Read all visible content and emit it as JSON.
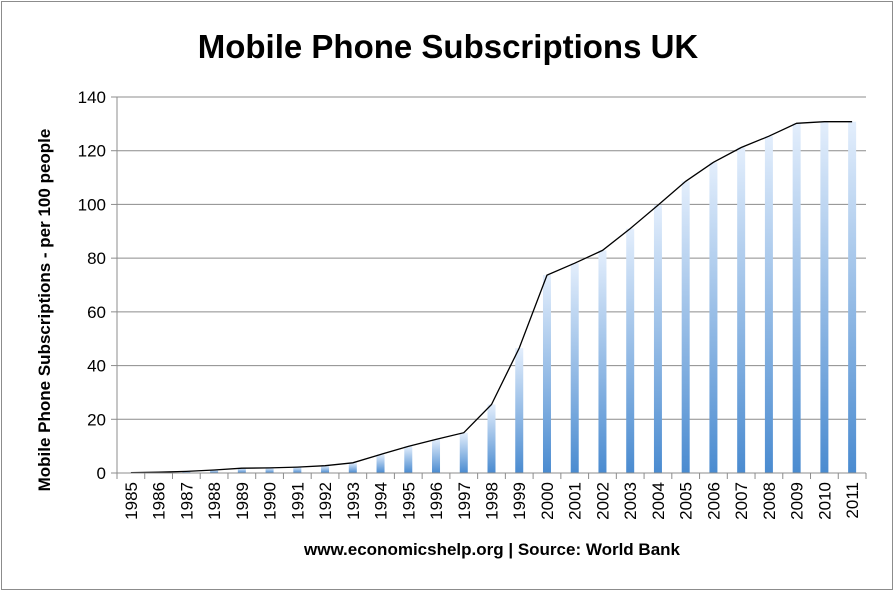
{
  "chart_data": {
    "type": "bar",
    "title": "Mobile Phone Subscriptions UK",
    "xlabel": "www.economicshelp.org | Source: World Bank",
    "ylabel": "Mobile Phone Subscriptions - per 100 people",
    "categories": [
      "1985",
      "1986",
      "1987",
      "1988",
      "1989",
      "1990",
      "1991",
      "1992",
      "1993",
      "1994",
      "1995",
      "1996",
      "1997",
      "1998",
      "1999",
      "2000",
      "2001",
      "2002",
      "2003",
      "2004",
      "2005",
      "2006",
      "2007",
      "2008",
      "2009",
      "2010",
      "2011"
    ],
    "values": [
      0.1,
      0.3,
      0.6,
      1.1,
      1.8,
      1.9,
      2.2,
      2.7,
      3.8,
      6.9,
      9.9,
      12.5,
      15.0,
      25.5,
      46.5,
      73.7,
      78.1,
      82.9,
      91.0,
      99.7,
      108.6,
      115.7,
      121.2,
      125.4,
      130.2,
      130.8,
      130.8
    ],
    "series": [
      {
        "type": "bar",
        "values": "values"
      },
      {
        "type": "line",
        "values": "values",
        "color": "#000000"
      }
    ],
    "ylim": [
      0,
      140
    ],
    "yticks": [
      0,
      20,
      40,
      60,
      80,
      100,
      120,
      140
    ],
    "grid": true,
    "legend": "none",
    "colors": {
      "bar_light": "#e3eefc",
      "bar_dark": "#4a8bd0",
      "line": "#000000",
      "grid": "#8c8c8c"
    }
  }
}
